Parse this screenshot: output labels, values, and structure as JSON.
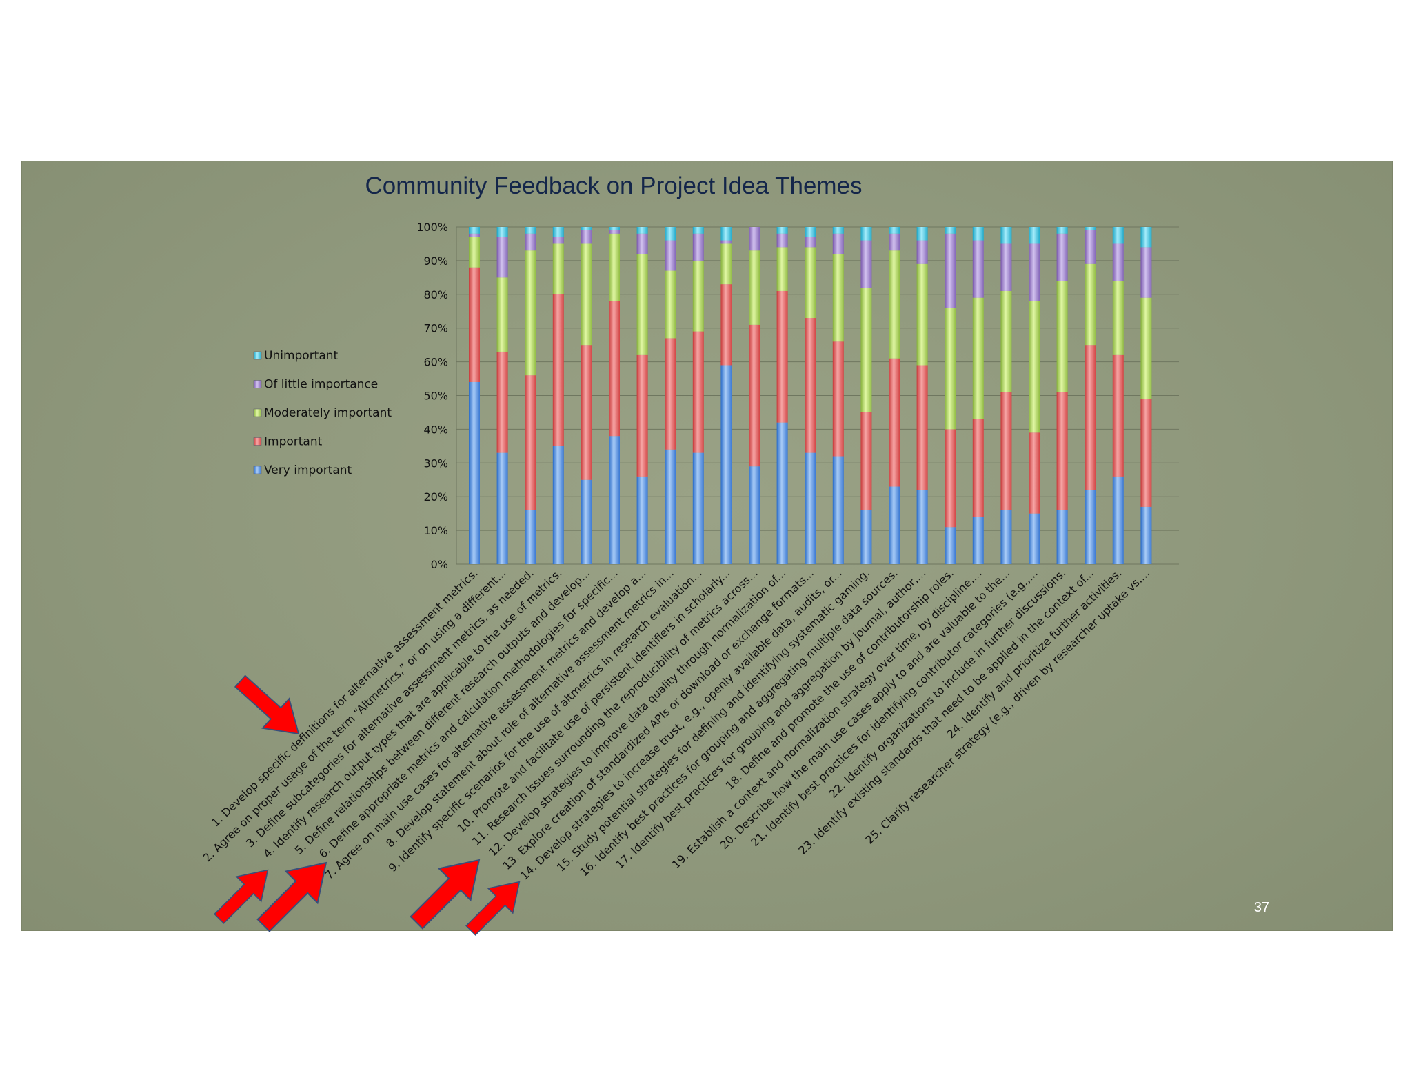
{
  "page_number": "37",
  "colors": {
    "very_important": "#4f8fe0",
    "important": "#e05a5a",
    "moderately_important": "#a8cf58",
    "of_little_importance": "#9a7cc8",
    "unimportant": "#3cc0dc",
    "arrow": "#ff0000"
  },
  "annotations": {
    "arrows": 5,
    "arrow_icon": "red-arrow-icon"
  },
  "chart_data": {
    "type": "bar",
    "stacked": "percent",
    "title": "Community Feedback on Project Idea Themes",
    "xlabel": "",
    "ylabel": "",
    "ylim": [
      0,
      100
    ],
    "y_ticks": [
      "0%",
      "10%",
      "20%",
      "30%",
      "40%",
      "50%",
      "60%",
      "70%",
      "80%",
      "90%",
      "100%"
    ],
    "grid": true,
    "legend_position": "left",
    "legend": [
      "Unimportant",
      "Of little importance",
      "Moderately important",
      "Important",
      "Very important"
    ],
    "categories": [
      "1. Develop specific definitions for alternative assessment metrics.",
      "2. Agree on proper usage of the term “Altmetrics,” or on using a different...",
      "3. Define subcategories for alternative assessment metrics, as needed.",
      "4. Identify research output types that are applicable to the use of metrics.",
      "5. Define relationships between different research outputs and develop...",
      "6. Define appropriate metrics and calculation methodologies for specific...",
      "7. Agree on main use cases for alternative assessment metrics and develop a...",
      "8. Develop statement about role of alternative assessment metrics in...",
      "9. Identify specific scenarios for the use of altmetrics in research evaluation...",
      "10. Promote and facilitate use of persistent identifiers in scholarly...",
      "11. Research issues surrounding the reproducibility of metrics across...",
      "12. Develop strategies to improve data quality through normalization of...",
      "13. Explore creation of standardized APIs or download or exchange formats...",
      "14. Develop strategies to increase trust, e.g., openly available data, audits, or...",
      "15. Study potential strategies for defining and identifying systematic gaming.",
      "16. Identify best practices for grouping and aggregating multiple data sources.",
      "17. Identify best practices for grouping and aggregation by journal, author,...",
      "18. Define and promote the use of contributorship roles.",
      "19. Establish a context and normalization strategy over time, by discipline,...",
      "20. Describe how the main use cases apply to and are valuable to the...",
      "21. Identify best practices for identifying contributor categories (e.g.,...",
      "22. Identify organizations to include in further discussions.",
      "23. Identify existing standards that need to be applied in the context of...",
      "24. Identify and prioritize further activities.",
      "25. Clarify researcher strategy (e.g., driven by researcher uptake vs...."
    ],
    "series": [
      {
        "name": "Very important",
        "values": [
          54,
          33,
          16,
          35,
          25,
          38,
          26,
          34,
          33,
          59,
          29,
          42,
          33,
          32,
          16,
          23,
          22,
          11,
          14,
          16,
          15,
          16,
          22,
          26,
          17
        ]
      },
      {
        "name": "Important",
        "values": [
          34,
          30,
          40,
          45,
          40,
          40,
          36,
          33,
          36,
          24,
          42,
          39,
          40,
          34,
          29,
          38,
          37,
          29,
          29,
          35,
          24,
          35,
          43,
          36,
          32
        ]
      },
      {
        "name": "Moderately important",
        "values": [
          9,
          22,
          37,
          15,
          30,
          20,
          30,
          20,
          21,
          12,
          22,
          13,
          21,
          26,
          37,
          32,
          30,
          36,
          36,
          30,
          39,
          33,
          24,
          22,
          30
        ]
      },
      {
        "name": "Of little importance",
        "values": [
          1,
          12,
          5,
          2,
          4,
          1,
          6,
          9,
          8,
          1,
          7,
          4,
          3,
          6,
          14,
          5,
          7,
          22,
          17,
          14,
          17,
          14,
          10,
          11,
          15
        ]
      },
      {
        "name": "Unimportant",
        "values": [
          2,
          3,
          2,
          3,
          1,
          1,
          2,
          4,
          2,
          4,
          0,
          2,
          3,
          2,
          4,
          2,
          4,
          2,
          4,
          5,
          5,
          2,
          1,
          5,
          6
        ]
      }
    ]
  }
}
